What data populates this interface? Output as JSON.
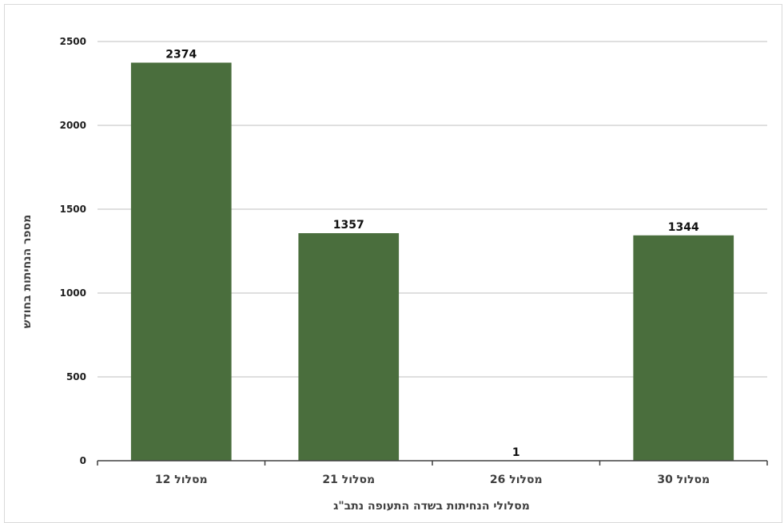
{
  "chart_data": {
    "type": "bar",
    "categories": [
      "מסלול 12",
      "מסלול 21",
      "מסלול 26",
      "מסלול 30"
    ],
    "values": [
      2374,
      1357,
      1,
      1344
    ],
    "data_labels": [
      "2374",
      "1357",
      "1",
      "1344"
    ],
    "title": "",
    "xlabel": "מסלולי הנחיתות בשדה התעופה נתב\"ג",
    "ylabel": "מספר הנחיתות בחודש",
    "ylim": [
      0,
      2500
    ],
    "yticks": [
      0,
      500,
      1000,
      1500,
      2000,
      2500
    ],
    "ytick_labels": [
      "0",
      "500",
      "1000",
      "1500",
      "2000",
      "2500"
    ],
    "grid": true,
    "legend": "none",
    "colors": {
      "bar": "#4a6e3d",
      "grid": "#bfbfbf",
      "axis": "#404040"
    }
  }
}
